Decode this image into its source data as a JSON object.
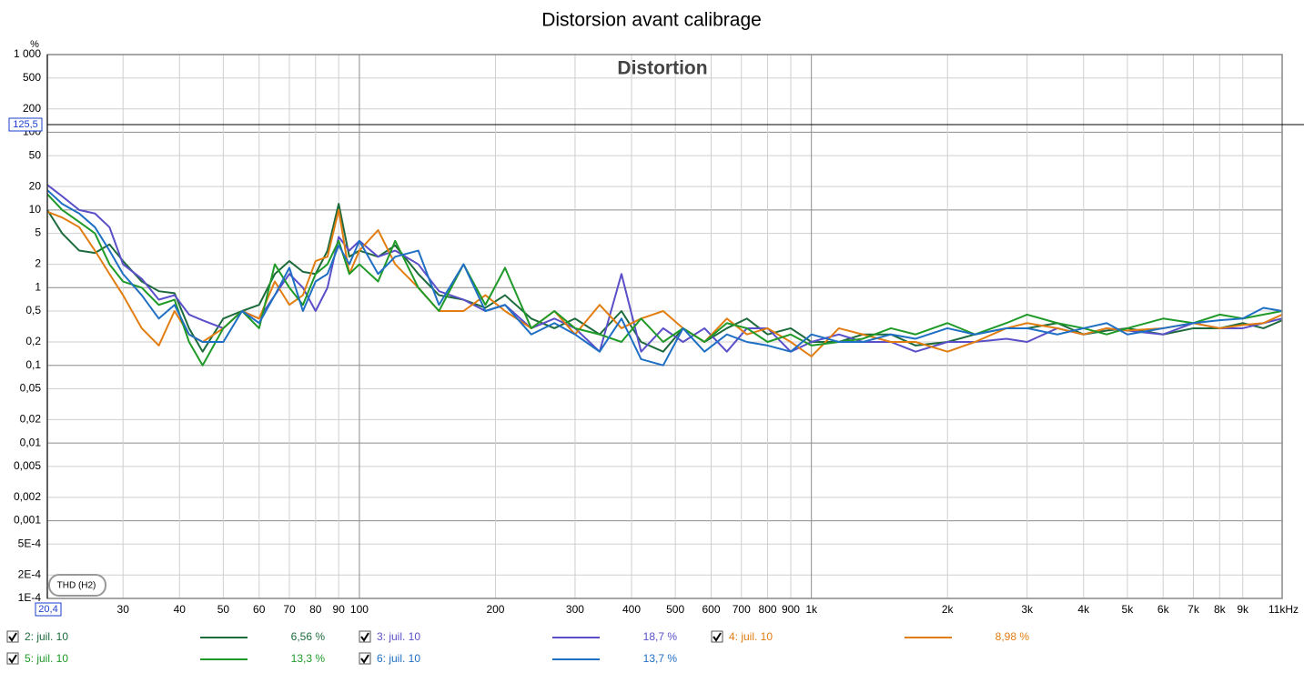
{
  "chart_data": {
    "type": "line",
    "title": "Distorsion avant calibrage",
    "subtitle": "Distortion",
    "annotation": "THD (H2)",
    "y_unit": "%",
    "log_x": true,
    "log_y": true,
    "grid": true,
    "xlim": [
      20.4,
      11000
    ],
    "ylim": [
      0.0001,
      1000
    ],
    "cursor_x": {
      "value": 20.4,
      "label": "20,4"
    },
    "cursor_y": {
      "value": 125.5,
      "label": "125,5"
    },
    "xticks": [
      30,
      40,
      50,
      60,
      70,
      80,
      90,
      100,
      200,
      300,
      400,
      500,
      600,
      700,
      800,
      900,
      {
        "value": 1000,
        "label": "1k"
      },
      {
        "value": 2000,
        "label": "2k"
      },
      {
        "value": 3000,
        "label": "3k"
      },
      {
        "value": 4000,
        "label": "4k"
      },
      {
        "value": 5000,
        "label": "5k"
      },
      {
        "value": 6000,
        "label": "6k"
      },
      {
        "value": 7000,
        "label": "7k"
      },
      {
        "value": 8000,
        "label": "8k"
      },
      {
        "value": 9000,
        "label": "9k"
      },
      {
        "value": 11000,
        "label": "11kHz"
      }
    ],
    "yticks": [
      {
        "value": 1000,
        "label": "1 000"
      },
      500,
      200,
      100,
      50,
      20,
      10,
      5,
      2,
      1,
      {
        "value": 0.5,
        "label": "0,5"
      },
      {
        "value": 0.2,
        "label": "0,2"
      },
      {
        "value": 0.1,
        "label": "0,1"
      },
      {
        "value": 0.05,
        "label": "0,05"
      },
      {
        "value": 0.02,
        "label": "0,02"
      },
      {
        "value": 0.01,
        "label": "0,01"
      },
      {
        "value": 0.005,
        "label": "0,005"
      },
      {
        "value": 0.002,
        "label": "0,002"
      },
      {
        "value": 0.001,
        "label": "0,001"
      },
      {
        "value": 0.0005,
        "label": "5E-4"
      },
      {
        "value": 0.0002,
        "label": "2E-4"
      },
      {
        "value": 0.0001,
        "label": "1E-4"
      }
    ],
    "x": [
      20.4,
      22,
      24,
      26,
      28,
      30,
      33,
      36,
      39,
      42,
      45,
      50,
      55,
      60,
      65,
      70,
      75,
      80,
      85,
      90,
      95,
      100,
      110,
      120,
      135,
      150,
      170,
      190,
      210,
      240,
      270,
      300,
      340,
      380,
      420,
      470,
      520,
      580,
      650,
      720,
      800,
      900,
      1000,
      1150,
      1300,
      1500,
      1700,
      2000,
      2300,
      2700,
      3000,
      3500,
      4000,
      4500,
      5000,
      6000,
      7000,
      8000,
      9000,
      10000,
      11000
    ],
    "series": [
      {
        "name": "2: juil. 10",
        "legend_value": "6,56 %",
        "color": "#1d6b3c",
        "values": [
          10,
          5,
          3,
          2.8,
          3.6,
          2.2,
          1.2,
          0.9,
          0.85,
          0.3,
          0.15,
          0.4,
          0.5,
          0.6,
          1.5,
          2.2,
          1.6,
          1.5,
          3,
          12,
          2.5,
          3,
          2.5,
          3.5,
          1.5,
          0.8,
          0.7,
          0.55,
          0.8,
          0.4,
          0.3,
          0.4,
          0.25,
          0.5,
          0.2,
          0.15,
          0.3,
          0.2,
          0.3,
          0.4,
          0.25,
          0.3,
          0.2,
          0.2,
          0.25,
          0.25,
          0.18,
          0.2,
          0.25,
          0.3,
          0.3,
          0.35,
          0.25,
          0.28,
          0.3,
          0.25,
          0.3,
          0.3,
          0.35,
          0.3,
          0.38
        ]
      },
      {
        "name": "3: juil. 10",
        "legend_value": "18,7 %",
        "color": "#5a4fc8",
        "values": [
          21,
          15,
          10,
          9,
          6,
          2,
          1.3,
          0.7,
          0.8,
          0.45,
          0.38,
          0.3,
          0.5,
          0.4,
          0.8,
          1.5,
          1,
          0.5,
          1,
          4.5,
          3,
          4,
          2.5,
          3,
          2,
          0.9,
          0.7,
          0.5,
          0.6,
          0.3,
          0.4,
          0.3,
          0.15,
          1.5,
          0.15,
          0.3,
          0.2,
          0.3,
          0.15,
          0.3,
          0.3,
          0.15,
          0.2,
          0.25,
          0.2,
          0.2,
          0.15,
          0.2,
          0.2,
          0.22,
          0.2,
          0.3,
          0.25,
          0.3,
          0.28,
          0.25,
          0.35,
          0.3,
          0.3,
          0.35,
          0.4
        ]
      },
      {
        "name": "4: juil. 10",
        "legend_value": "8,98 %",
        "color": "#e27d12",
        "values": [
          9.5,
          8,
          6,
          3,
          1.5,
          0.8,
          0.3,
          0.18,
          0.5,
          0.25,
          0.2,
          0.3,
          0.5,
          0.4,
          1.2,
          0.6,
          0.8,
          2.2,
          2.5,
          10,
          1.5,
          3,
          5.5,
          2,
          1,
          0.5,
          0.5,
          0.8,
          0.5,
          0.3,
          0.5,
          0.25,
          0.6,
          0.3,
          0.4,
          0.5,
          0.3,
          0.2,
          0.4,
          0.25,
          0.3,
          0.2,
          0.13,
          0.3,
          0.25,
          0.2,
          0.2,
          0.15,
          0.2,
          0.3,
          0.35,
          0.3,
          0.25,
          0.3,
          0.28,
          0.3,
          0.35,
          0.3,
          0.33,
          0.35,
          0.45
        ]
      },
      {
        "name": "5: juil. 10",
        "legend_value": "13,3 %",
        "color": "#1f9a28",
        "values": [
          16,
          10,
          7,
          5,
          2,
          1.2,
          1,
          0.6,
          0.7,
          0.2,
          0.1,
          0.3,
          0.5,
          0.3,
          2,
          1,
          0.6,
          1.5,
          2,
          4,
          1.5,
          2,
          1.2,
          4,
          1,
          0.5,
          2,
          0.6,
          1.8,
          0.3,
          0.5,
          0.3,
          0.25,
          0.2,
          0.4,
          0.2,
          0.3,
          0.2,
          0.35,
          0.3,
          0.2,
          0.25,
          0.18,
          0.2,
          0.22,
          0.3,
          0.25,
          0.35,
          0.25,
          0.35,
          0.45,
          0.35,
          0.3,
          0.25,
          0.3,
          0.4,
          0.35,
          0.45,
          0.4,
          0.45,
          0.5
        ]
      },
      {
        "name": "6: juil. 10",
        "legend_value": "13,7 %",
        "color": "#1f6fc4",
        "values": [
          18,
          12,
          9,
          6,
          3,
          1.5,
          0.8,
          0.4,
          0.6,
          0.25,
          0.2,
          0.2,
          0.5,
          0.35,
          0.8,
          1.8,
          0.5,
          1.2,
          1.5,
          3.5,
          2,
          4,
          1.5,
          2.5,
          3,
          0.6,
          2,
          0.5,
          0.6,
          0.25,
          0.35,
          0.25,
          0.15,
          0.4,
          0.12,
          0.1,
          0.3,
          0.15,
          0.25,
          0.2,
          0.18,
          0.15,
          0.25,
          0.2,
          0.2,
          0.25,
          0.22,
          0.3,
          0.25,
          0.3,
          0.3,
          0.25,
          0.3,
          0.35,
          0.25,
          0.3,
          0.35,
          0.38,
          0.4,
          0.55,
          0.5
        ]
      }
    ]
  }
}
